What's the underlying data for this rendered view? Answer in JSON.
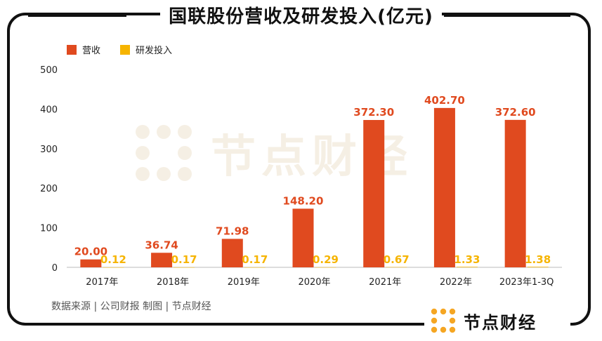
{
  "title": "国联股份营收及研发投入(亿元)",
  "source_note": "数据来源 | 公司财报   制图 | 节点财经",
  "brand": {
    "logo": "节点财经"
  },
  "watermark": {
    "text": "节点财经"
  },
  "colors": {
    "revenue": "#E04A1F",
    "rd": "#F6B400",
    "axis": "#222222",
    "frame": "#111111",
    "logo": "#F5A623"
  },
  "chart_data": {
    "type": "bar",
    "title": "国联股份营收及研发投入(亿元)",
    "xlabel": "",
    "ylabel": "",
    "ylim": [
      0,
      500
    ],
    "yticks": [
      0,
      100,
      200,
      300,
      400,
      500
    ],
    "legend_position": "top-left",
    "grid": false,
    "categories": [
      "2017年",
      "2018年",
      "2019年",
      "2020年",
      "2021年",
      "2022年",
      "2023年1-3Q"
    ],
    "series": [
      {
        "name": "营收",
        "color": "#E04A1F",
        "values": [
          20.0,
          36.74,
          71.98,
          148.2,
          372.3,
          402.7,
          372.6
        ],
        "labels": [
          "20.00",
          "36.74",
          "71.98",
          "148.20",
          "372.30",
          "402.70",
          "372.60"
        ]
      },
      {
        "name": "研发投入",
        "color": "#F6B400",
        "values": [
          0.12,
          0.17,
          0.17,
          0.29,
          0.67,
          1.33,
          1.38
        ],
        "labels": [
          "0.12",
          "0.17",
          "0.17",
          "0.29",
          "0.67",
          "1.33",
          "1.38"
        ]
      }
    ]
  }
}
